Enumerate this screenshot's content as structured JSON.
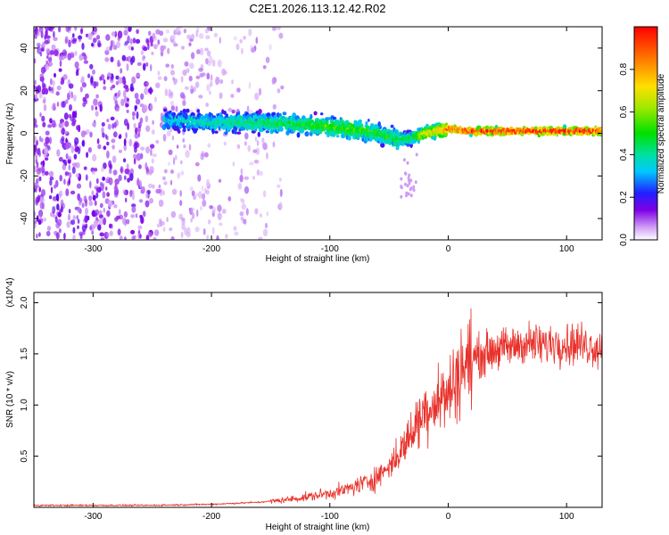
{
  "title": "C2E1.2026.113.12.42.R02",
  "chart_data": [
    {
      "type": "heatmap",
      "xlabel": "Height of straight line (km)",
      "ylabel": "Frequency (Hz)",
      "xlim": [
        -350,
        130
      ],
      "ylim": [
        -50,
        50
      ],
      "xticks": [
        -300,
        -200,
        -100,
        0,
        100
      ],
      "yticks": [
        -40,
        -20,
        0,
        20,
        40
      ],
      "colorbar": {
        "label": "Normalized spectral amplitude",
        "range": [
          0.0,
          1.0
        ],
        "ticks": [
          0.0,
          0.2,
          0.4,
          0.6,
          0.8
        ]
      },
      "ridge": {
        "x": [
          -240,
          -200,
          -160,
          -120,
          -100,
          -80,
          -60,
          -40,
          -30,
          -20,
          -10,
          0,
          20,
          60,
          100,
          130
        ],
        "freq_hz": [
          6,
          5,
          5,
          4,
          3,
          2,
          0,
          -3,
          -2,
          0,
          1,
          2,
          1,
          1,
          1,
          1
        ],
        "amplitude": [
          0.35,
          0.4,
          0.45,
          0.5,
          0.55,
          0.55,
          0.5,
          0.45,
          0.5,
          0.7,
          0.75,
          0.9,
          1.0,
          1.0,
          1.0,
          1.0
        ]
      }
    },
    {
      "type": "line",
      "xlabel": "Height of straight line (km)",
      "ylabel": "SNR (10 * v/v)",
      "y_multiplier": "(x10^4)",
      "xlim": [
        -350,
        130
      ],
      "ylim": [
        0,
        2.1
      ],
      "xticks": [
        -300,
        -200,
        -100,
        0,
        100
      ],
      "yticks": [
        0.5,
        1.0,
        1.5,
        2.0
      ],
      "series": [
        {
          "color": "#e8312a",
          "x": [
            -350,
            -300,
            -250,
            -200,
            -180,
            -160,
            -140,
            -120,
            -100,
            -90,
            -80,
            -70,
            -60,
            -50,
            -40,
            -30,
            -20,
            -10,
            0,
            10,
            20,
            30,
            40,
            50,
            60,
            70,
            80,
            90,
            100,
            110,
            120,
            130
          ],
          "y": [
            0.02,
            0.02,
            0.02,
            0.03,
            0.04,
            0.05,
            0.07,
            0.1,
            0.14,
            0.16,
            0.2,
            0.24,
            0.3,
            0.4,
            0.55,
            0.75,
            0.95,
            1.05,
            1.1,
            1.35,
            1.45,
            1.5,
            1.55,
            1.55,
            1.6,
            1.6,
            1.58,
            1.62,
            1.6,
            1.6,
            1.58,
            1.55
          ]
        }
      ]
    }
  ]
}
